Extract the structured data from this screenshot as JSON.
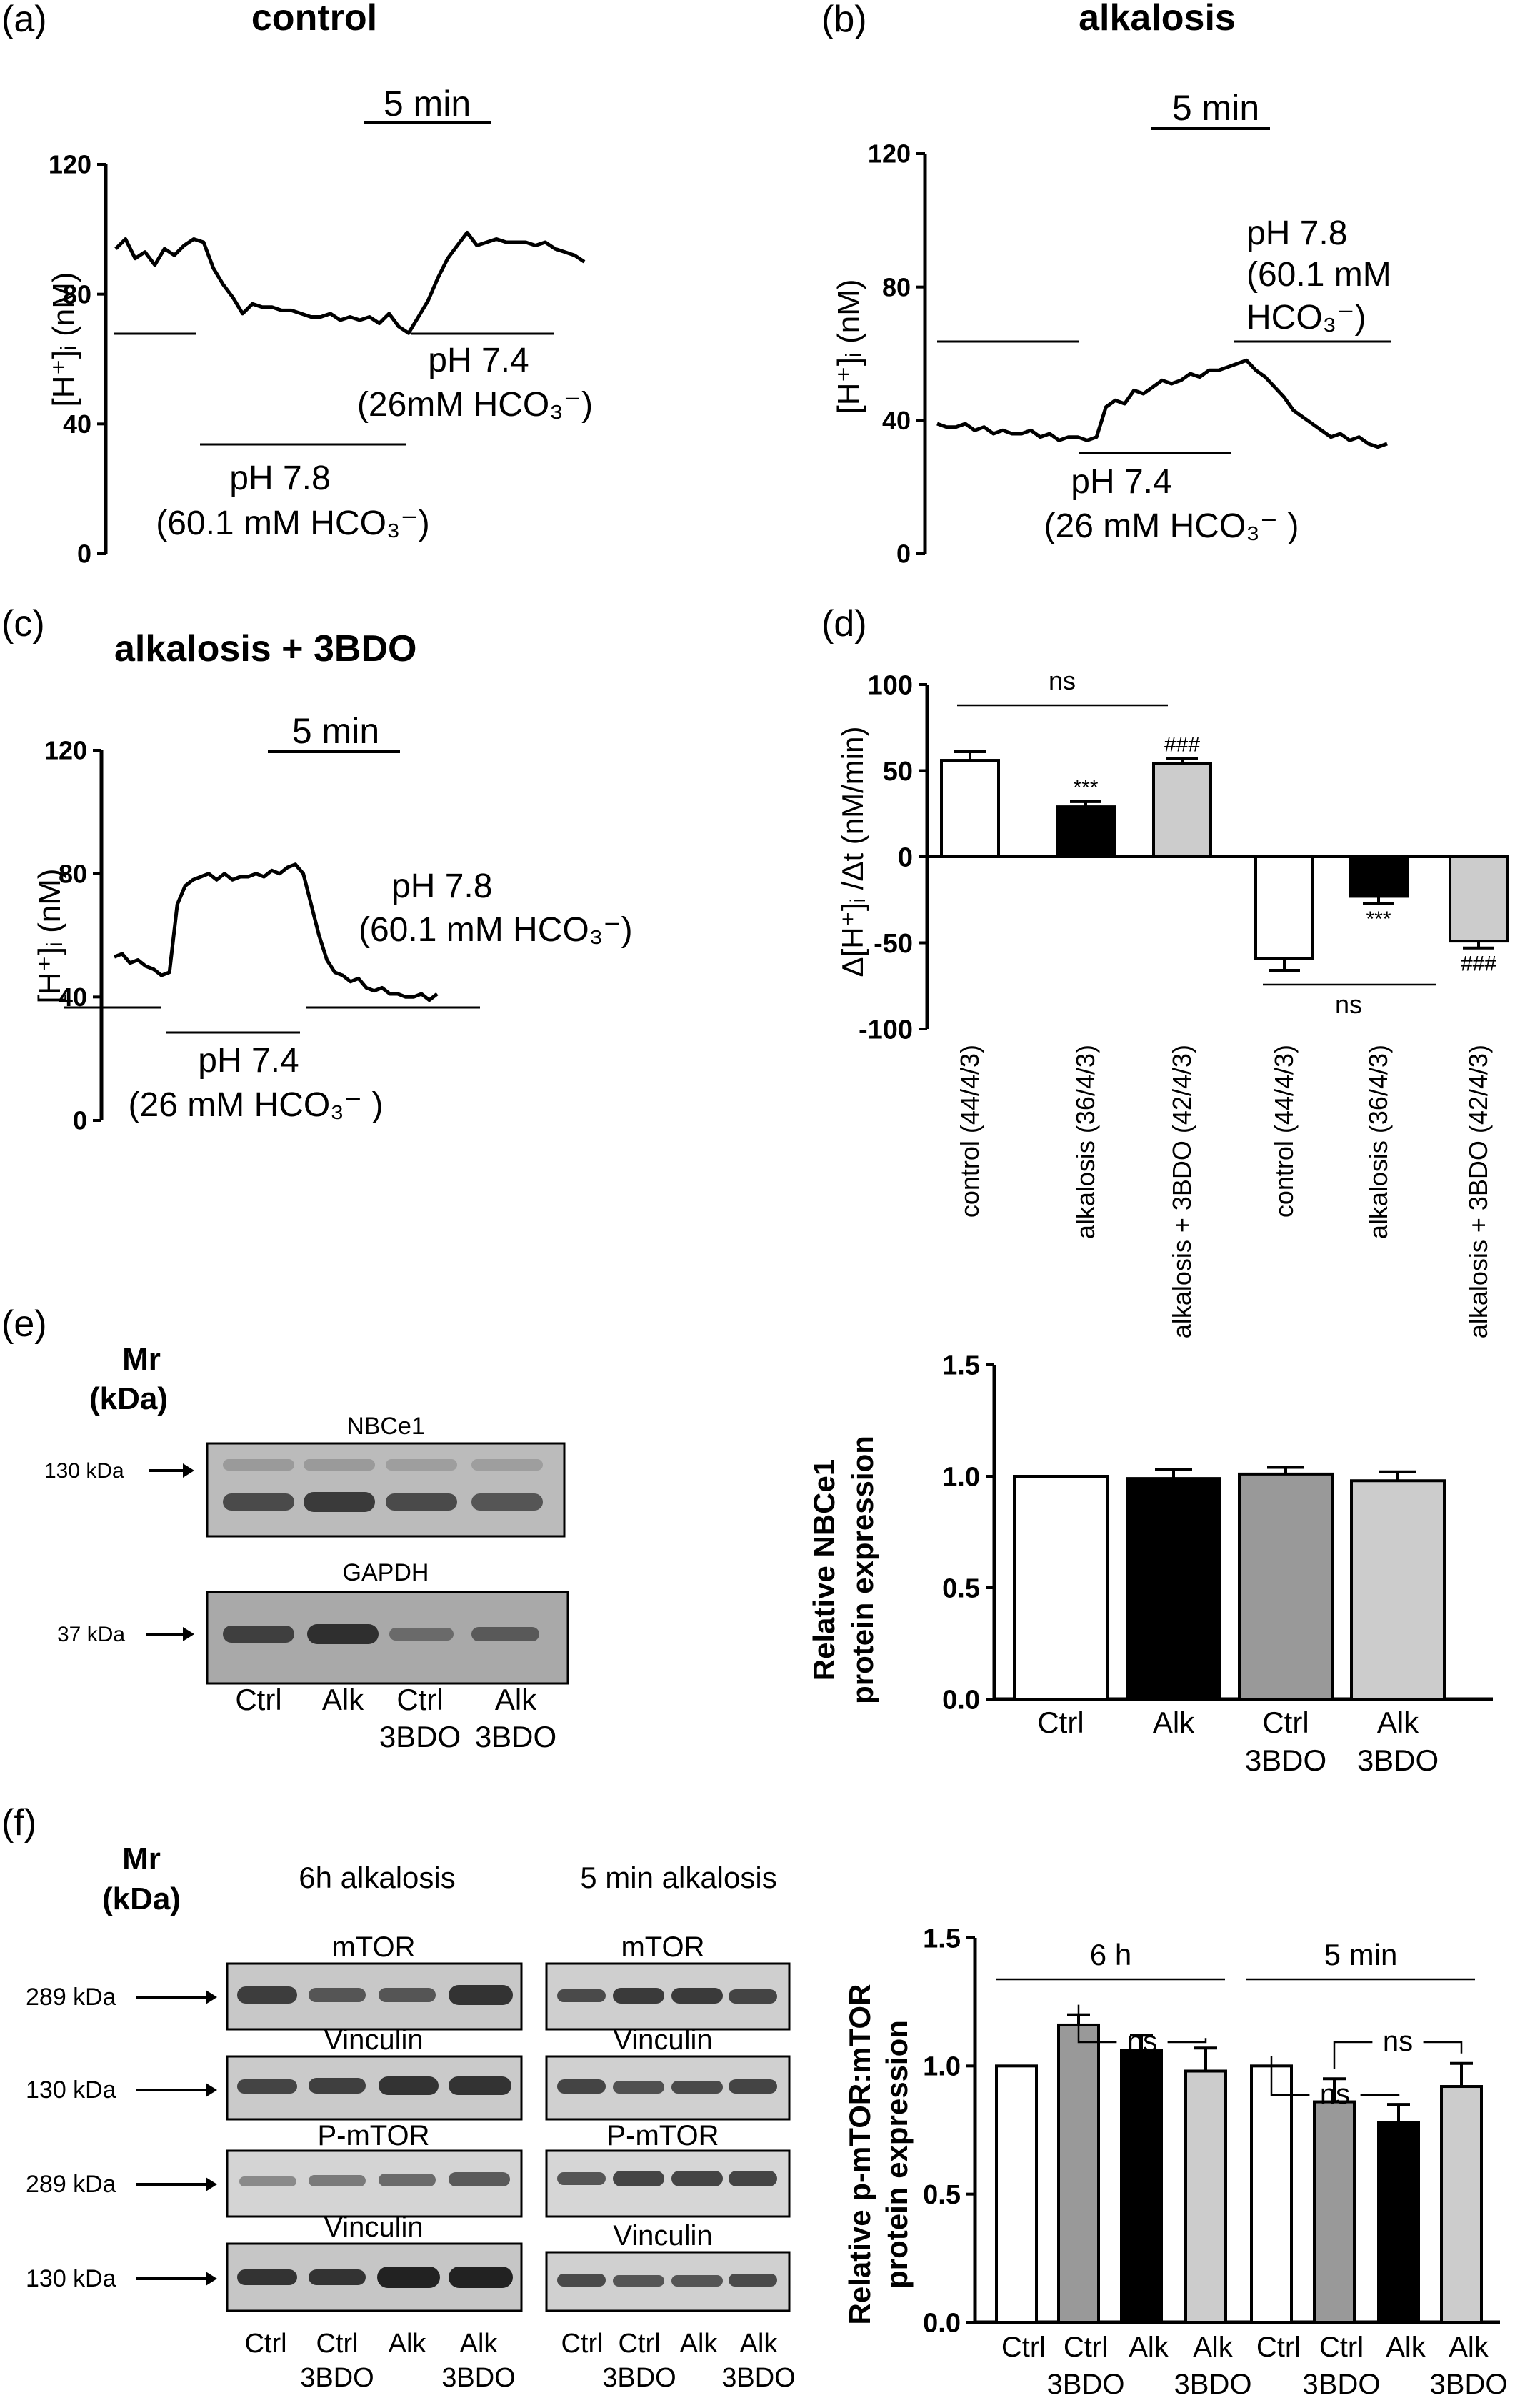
{
  "panels": {
    "a": {
      "letter": "(a)",
      "title": "control",
      "scale_label": "5 min",
      "ylabel": "[H⁺]ᵢ (nM)",
      "yticks": [
        "0",
        "40",
        "80",
        "120"
      ],
      "ann1_line1": "pH 7.8",
      "ann1_line2": "(60.1 mM HCO₃⁻)",
      "ann2_line1": "pH 7.4",
      "ann2_line2": "(26mM HCO₃⁻)"
    },
    "b": {
      "letter": "(b)",
      "title": "alkalosis",
      "scale_label": "5 min",
      "ylabel": "[H⁺]ᵢ (nM)",
      "yticks": [
        "0",
        "40",
        "80",
        "120"
      ],
      "ann1_line1": "pH 7.4",
      "ann1_line2": "(26 mM HCO₃⁻ )",
      "ann2_line1": "pH 7.8",
      "ann2_line2": "(60.1 mM",
      "ann2_line3": "HCO₃⁻)"
    },
    "c": {
      "letter": "(c)",
      "title": "alkalosis + 3BDO",
      "scale_label": "5 min",
      "ylabel": "[H⁺]ᵢ (nM)",
      "yticks": [
        "0",
        "40",
        "80",
        "120"
      ],
      "ann1_line1": "pH 7.4",
      "ann1_line2": "(26 mM HCO₃⁻ )",
      "ann2_line1": "pH 7.8",
      "ann2_line2": "(60.1 mM HCO₃⁻)"
    },
    "d": {
      "letter": "(d)",
      "ylabel": "Δ[H⁺]ᵢ /Δt (nM/min)",
      "yticks": [
        "100",
        "50",
        "0",
        "-50",
        "-100"
      ],
      "ns_top": "ns",
      "ns_bottom": "ns"
    },
    "e": {
      "letter": "(e)",
      "mr_line1": "Mr",
      "mr_line2": "(kDa)",
      "blot1_label": "NBCe1",
      "blot1_marker": "130 kDa",
      "blot2_label": "GAPDH",
      "blot2_marker": "37 kDa",
      "lanes": [
        {
          "line1": "Ctrl",
          "line2": ""
        },
        {
          "line1": "Alk",
          "line2": ""
        },
        {
          "line1": "Ctrl",
          "line2": "3BDO"
        },
        {
          "line1": "Alk",
          "line2": "3BDO"
        }
      ],
      "ylabel_line1": "Relative NBCe1",
      "ylabel_line2": "protein expression",
      "yticks": [
        "0.0",
        "0.5",
        "1.0",
        "1.5"
      ]
    },
    "f": {
      "letter": "(f)",
      "mr_line1": "Mr",
      "mr_line2": "(kDa)",
      "group1": "6h alkalosis",
      "group2": "5 min alkalosis",
      "blot_labels": [
        "mTOR",
        "Vinculin",
        "P-mTOR",
        "Vinculin"
      ],
      "markers": [
        "289 kDa",
        "130 kDa",
        "289 kDa",
        "130 kDa"
      ],
      "lanes": [
        {
          "line1": "Ctrl",
          "line2": ""
        },
        {
          "line1": "Ctrl",
          "line2": "3BDO"
        },
        {
          "line1": "Alk",
          "line2": ""
        },
        {
          "line1": "Alk",
          "line2": "3BDO"
        }
      ],
      "ylabel_line1": "Relative p-mTOR:mTOR",
      "ylabel_line2": "protein expression",
      "yticks": [
        "0.0",
        "0.5",
        "1.0",
        "1.5"
      ],
      "bracket1": "6 h",
      "bracket2": "5 min",
      "ns": "ns"
    }
  },
  "chart_data": [
    {
      "panel": "a",
      "type": "line",
      "title": "control",
      "ylabel": "[H⁺]ᵢ (nM)",
      "ylim": [
        0,
        120
      ],
      "grid": false,
      "series": [
        {
          "values": [
            94,
            97,
            91,
            93,
            89,
            94,
            92,
            95,
            97,
            96,
            88,
            83,
            79,
            74,
            77,
            76,
            76,
            75,
            75,
            74,
            73,
            73,
            74,
            72,
            73,
            72,
            73,
            71,
            74,
            70,
            68,
            73,
            78,
            85,
            91,
            95,
            99,
            95,
            96,
            97,
            96,
            96,
            96,
            95,
            96,
            94,
            93,
            92,
            90
          ]
        }
      ]
    },
    {
      "panel": "b",
      "type": "line",
      "title": "alkalosis",
      "ylabel": "[H⁺]ᵢ (nM)",
      "ylim": [
        0,
        120
      ],
      "grid": false,
      "series": [
        {
          "values": [
            39,
            38,
            38,
            39,
            37,
            38,
            36,
            37,
            36,
            36,
            37,
            35,
            36,
            34,
            35,
            35,
            34,
            35,
            44,
            46,
            45,
            49,
            48,
            50,
            52,
            51,
            52,
            54,
            53,
            55,
            55,
            56,
            57,
            58,
            55,
            53,
            50,
            47,
            43,
            41,
            39,
            37,
            35,
            36,
            34,
            35,
            33,
            32,
            33
          ]
        }
      ]
    },
    {
      "panel": "c",
      "type": "line",
      "title": "alkalosis + 3BDO",
      "ylabel": "[H⁺]ᵢ (nM)",
      "ylim": [
        0,
        120
      ],
      "grid": false,
      "series": [
        {
          "values": [
            53,
            54,
            51,
            52,
            50,
            49,
            47,
            48,
            70,
            76,
            78,
            79,
            80,
            78,
            80,
            78,
            79,
            79,
            80,
            79,
            81,
            80,
            82,
            83,
            80,
            70,
            60,
            52,
            48,
            47,
            45,
            46,
            43,
            42,
            43,
            41,
            41,
            40,
            40,
            41,
            39,
            41
          ]
        }
      ]
    },
    {
      "panel": "d",
      "type": "bar",
      "ylabel": "Δ[H⁺]ᵢ /Δt (nM/min)",
      "ylim": [
        -100,
        100
      ],
      "categories": [
        "control (44/4/3)",
        "alkalosis (36/4/3)",
        "alkalosis + 3BDO (42/4/3)",
        "control (44/4/3)",
        "alkalosis (36/4/3)",
        "alkalosis + 3BDO (42/4/3)"
      ],
      "values": [
        56,
        29,
        54,
        -59,
        -23,
        -49
      ],
      "errors": [
        5,
        3,
        3,
        7,
        4,
        4
      ],
      "fills": [
        "#ffffff",
        "#000000",
        "#cccccc",
        "#ffffff",
        "#000000",
        "#cccccc"
      ],
      "significance": [
        "",
        "***",
        "###",
        "",
        "***",
        "###"
      ],
      "comparisons": [
        {
          "from": 0,
          "to": 2,
          "label": "ns"
        },
        {
          "from": 3,
          "to": 5,
          "label": "ns"
        }
      ]
    },
    {
      "panel": "e",
      "type": "bar",
      "ylabel": "Relative NBCe1 protein expression",
      "ylim": [
        0,
        1.5
      ],
      "categories": [
        "Ctrl",
        "Alk",
        "Ctrl 3BDO",
        "Alk 3BDO"
      ],
      "values": [
        1.0,
        0.99,
        1.01,
        0.98
      ],
      "errors": [
        0,
        0.04,
        0.03,
        0.04
      ],
      "fills": [
        "#ffffff",
        "#000000",
        "#999999",
        "#cccccc"
      ]
    },
    {
      "panel": "f",
      "type": "bar",
      "ylabel": "Relative p-mTOR:mTOR protein expression",
      "ylim": [
        0,
        1.5
      ],
      "categories": [
        "Ctrl",
        "Ctrl 3BDO",
        "Alk",
        "Alk 3BDO",
        "Ctrl",
        "Ctrl 3BDO",
        "Alk",
        "Alk 3BDO"
      ],
      "groups": [
        {
          "label": "6 h",
          "indices": [
            0,
            1,
            2,
            3
          ]
        },
        {
          "label": "5 min",
          "indices": [
            4,
            5,
            6,
            7
          ]
        }
      ],
      "values": [
        1.0,
        1.16,
        1.06,
        0.98,
        1.0,
        0.86,
        0.78,
        0.92
      ],
      "errors": [
        0,
        0.04,
        0.06,
        0.09,
        0,
        0.09,
        0.07,
        0.09
      ],
      "fills": [
        "#ffffff",
        "#999999",
        "#000000",
        "#cccccc",
        "#ffffff",
        "#999999",
        "#000000",
        "#cccccc"
      ],
      "comparisons": [
        {
          "from": 1,
          "to": 3,
          "label": "ns"
        },
        {
          "from": 4,
          "to": 6,
          "label": "ns"
        },
        {
          "from": 5,
          "to": 7,
          "label": "ns"
        }
      ]
    }
  ]
}
